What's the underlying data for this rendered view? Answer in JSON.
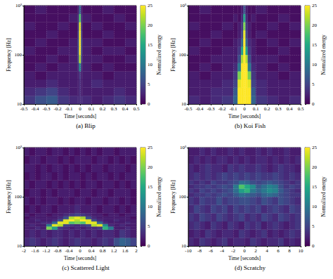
{
  "chart_data": [
    {
      "type": "heatmap",
      "title": "(a) Blip",
      "x_label": "Time [seconds]",
      "y_label": "Frequency [Hz]",
      "xlim": [
        -0.5,
        0.5
      ],
      "xticks": [
        -0.5,
        -0.4,
        -0.3,
        -0.2,
        -0.1,
        0,
        0.1,
        0.2,
        0.3,
        0.4,
        0.5
      ],
      "ylim": [
        10,
        1000
      ],
      "yticks": [
        10,
        100,
        {
          "value": 1000,
          "label": "10³"
        }
      ],
      "log": "y",
      "grid": true,
      "colorbar_label": "Normalized energy",
      "colorbar_range": [
        0,
        25
      ],
      "colorbar_ticks": [
        0,
        5,
        10,
        15,
        20,
        25
      ],
      "x_edges": [
        -0.5,
        -0.4,
        -0.3,
        -0.2,
        -0.1,
        -0.02,
        -0.008,
        0.008,
        0.02,
        0.1,
        0.2,
        0.3,
        0.4,
        0.5
      ],
      "y_edges": [
        10,
        14.7,
        21.5,
        31.6,
        46.4,
        68.1,
        100,
        147,
        215,
        316,
        464,
        681,
        1000
      ],
      "energy": [
        [
          4,
          6,
          7,
          4,
          3,
          3,
          3,
          3,
          3,
          2,
          3,
          4,
          3
        ],
        [
          3,
          4,
          5,
          3,
          2,
          2,
          3,
          2,
          2,
          2,
          2,
          3,
          2
        ],
        [
          2,
          2,
          3,
          2,
          2,
          2,
          3,
          2,
          2,
          3,
          2,
          2,
          2
        ],
        [
          2,
          1,
          2,
          2,
          2,
          2,
          4,
          2,
          2,
          2,
          1,
          2,
          2
        ],
        [
          1,
          2,
          1,
          2,
          2,
          3,
          12,
          3,
          2,
          1,
          2,
          1,
          1
        ],
        [
          1,
          1,
          2,
          1,
          2,
          5,
          22,
          5,
          2,
          2,
          1,
          1,
          2
        ],
        [
          2,
          1,
          1,
          2,
          2,
          6,
          25,
          6,
          2,
          1,
          2,
          2,
          1
        ],
        [
          1,
          2,
          1,
          1,
          2,
          6,
          25,
          6,
          2,
          2,
          1,
          1,
          2
        ],
        [
          1,
          1,
          2,
          1,
          1,
          5,
          25,
          5,
          1,
          1,
          2,
          1,
          1
        ],
        [
          2,
          1,
          1,
          2,
          1,
          4,
          24,
          4,
          1,
          2,
          1,
          1,
          2
        ],
        [
          1,
          1,
          1,
          1,
          2,
          3,
          18,
          3,
          2,
          1,
          1,
          2,
          1
        ],
        [
          1,
          2,
          1,
          1,
          1,
          2,
          8,
          2,
          1,
          1,
          2,
          1,
          1
        ]
      ]
    },
    {
      "type": "heatmap",
      "title": "(b) Koi Fish",
      "x_label": "Time [seconds]",
      "y_label": "Frequency [Hz]",
      "xlim": [
        -0.5,
        0.5
      ],
      "xticks": [
        -0.5,
        -0.4,
        -0.3,
        -0.2,
        -0.1,
        0,
        0.1,
        0.2,
        0.3,
        0.4,
        0.5
      ],
      "ylim": [
        10,
        1000
      ],
      "yticks": [
        10,
        100,
        {
          "value": 1000,
          "label": "10³"
        }
      ],
      "log": "y",
      "grid": true,
      "colorbar_label": "Normalized energy",
      "colorbar_range": [
        0,
        25
      ],
      "colorbar_ticks": [
        0,
        5,
        10,
        15,
        20,
        25
      ],
      "x_edges": [
        -0.5,
        -0.4,
        -0.3,
        -0.2,
        -0.1,
        -0.06,
        -0.03,
        -0.01,
        0.01,
        0.03,
        0.06,
        0.1,
        0.2,
        0.3,
        0.4,
        0.5
      ],
      "y_edges": [
        10,
        14.7,
        21.5,
        31.6,
        46.4,
        68.1,
        100,
        147,
        215,
        316,
        464,
        681,
        1000
      ],
      "energy": [
        [
          3,
          2,
          3,
          4,
          8,
          25,
          25,
          25,
          25,
          25,
          8,
          4,
          3,
          2,
          3
        ],
        [
          2,
          2,
          3,
          3,
          7,
          25,
          25,
          25,
          25,
          25,
          7,
          3,
          2,
          2,
          2
        ],
        [
          2,
          2,
          2,
          3,
          5,
          24,
          25,
          25,
          25,
          24,
          5,
          3,
          2,
          2,
          2
        ],
        [
          2,
          1,
          2,
          2,
          4,
          20,
          25,
          25,
          25,
          20,
          4,
          2,
          2,
          1,
          2
        ],
        [
          1,
          2,
          1,
          2,
          3,
          10,
          25,
          25,
          25,
          10,
          3,
          2,
          1,
          2,
          1
        ],
        [
          1,
          1,
          2,
          2,
          2,
          6,
          22,
          25,
          22,
          6,
          2,
          2,
          2,
          1,
          1
        ],
        [
          2,
          1,
          1,
          2,
          2,
          4,
          14,
          25,
          14,
          4,
          2,
          1,
          1,
          2,
          1
        ],
        [
          1,
          2,
          1,
          1,
          2,
          3,
          8,
          25,
          8,
          3,
          2,
          1,
          2,
          1,
          2
        ],
        [
          1,
          1,
          2,
          1,
          1,
          2,
          5,
          24,
          5,
          2,
          1,
          2,
          1,
          1,
          1
        ],
        [
          2,
          1,
          1,
          2,
          1,
          2,
          4,
          20,
          4,
          2,
          1,
          1,
          2,
          1,
          2
        ],
        [
          1,
          1,
          1,
          1,
          2,
          1,
          3,
          14,
          3,
          1,
          2,
          1,
          1,
          2,
          1
        ],
        [
          1,
          2,
          1,
          1,
          1,
          1,
          2,
          6,
          2,
          1,
          1,
          2,
          1,
          1,
          1
        ]
      ]
    },
    {
      "type": "heatmap",
      "title": "(c) Scattered Light",
      "x_label": "Time [seconds]",
      "y_label": "Frequency [Hz]",
      "xlim": [
        -2,
        2
      ],
      "xticks": [
        -2,
        -1.6,
        -1.2,
        -0.8,
        -0.4,
        0,
        0.4,
        0.8,
        1.2,
        1.6,
        2
      ],
      "ylim": [
        10,
        1000
      ],
      "yticks": [
        10,
        100,
        {
          "value": 1000,
          "label": "10³"
        }
      ],
      "log": "y",
      "grid": true,
      "colorbar_label": "Normalized energy",
      "colorbar_range": [
        0,
        25
      ],
      "colorbar_ticks": [
        0,
        5,
        10,
        15,
        20,
        25
      ],
      "x_edges": [
        -2,
        -1.8,
        -1.6,
        -1.4,
        -1.2,
        -1,
        -0.8,
        -0.6,
        -0.4,
        -0.2,
        0,
        0.2,
        0.4,
        0.6,
        0.8,
        1,
        1.2,
        1.4,
        1.6,
        1.8,
        2
      ],
      "y_edges": [
        10,
        14.7,
        21.5,
        25,
        28,
        31.6,
        35,
        40,
        46.4,
        68.1,
        100,
        147,
        215,
        316,
        464,
        681,
        1000
      ],
      "energy": [
        [
          3,
          4,
          3,
          2,
          3,
          4,
          3,
          2,
          3,
          4,
          3,
          3,
          2,
          3,
          4,
          3,
          6,
          8,
          7,
          5
        ],
        [
          2,
          3,
          2,
          3,
          2,
          3,
          3,
          2,
          3,
          2,
          3,
          2,
          3,
          2,
          3,
          3,
          2,
          4,
          3,
          2
        ],
        [
          2,
          2,
          3,
          2,
          20,
          14,
          4,
          3,
          2,
          3,
          2,
          3,
          3,
          4,
          16,
          10,
          2,
          2,
          3,
          2
        ],
        [
          2,
          3,
          2,
          2,
          10,
          24,
          22,
          5,
          4,
          3,
          4,
          5,
          22,
          24,
          12,
          3,
          2,
          3,
          2,
          2
        ],
        [
          2,
          2,
          2,
          3,
          3,
          8,
          24,
          24,
          18,
          20,
          18,
          24,
          24,
          8,
          3,
          2,
          2,
          2,
          3,
          2
        ],
        [
          2,
          2,
          3,
          2,
          2,
          3,
          6,
          24,
          25,
          22,
          25,
          24,
          6,
          3,
          2,
          2,
          3,
          2,
          2,
          2
        ],
        [
          1,
          2,
          2,
          2,
          2,
          2,
          3,
          6,
          22,
          24,
          22,
          6,
          3,
          2,
          2,
          2,
          2,
          2,
          2,
          1
        ],
        [
          2,
          1,
          2,
          2,
          1,
          2,
          2,
          3,
          4,
          5,
          4,
          3,
          2,
          2,
          1,
          2,
          2,
          1,
          2,
          2
        ],
        [
          1,
          2,
          1,
          2,
          2,
          1,
          2,
          2,
          2,
          3,
          2,
          2,
          2,
          1,
          2,
          2,
          1,
          2,
          1,
          2
        ],
        [
          2,
          1,
          2,
          1,
          2,
          2,
          1,
          2,
          1,
          2,
          2,
          1,
          2,
          2,
          1,
          2,
          2,
          1,
          2,
          1
        ],
        [
          1,
          2,
          2,
          1,
          2,
          1,
          2,
          2,
          2,
          1,
          2,
          2,
          1,
          2,
          2,
          1,
          2,
          2,
          2,
          1
        ],
        [
          2,
          1,
          2,
          2,
          1,
          2,
          1,
          2,
          1,
          2,
          1,
          2,
          2,
          1,
          2,
          2,
          1,
          2,
          1,
          2
        ],
        [
          1,
          2,
          1,
          2,
          2,
          1,
          2,
          1,
          2,
          2,
          1,
          2,
          1,
          2,
          2,
          1,
          2,
          1,
          2,
          2
        ],
        [
          2,
          2,
          1,
          2,
          1,
          2,
          2,
          1,
          2,
          1,
          2,
          1,
          2,
          2,
          1,
          2,
          2,
          2,
          1,
          2
        ],
        [
          1,
          2,
          2,
          1,
          2,
          2,
          1,
          2,
          1,
          2,
          2,
          2,
          1,
          2,
          2,
          1,
          2,
          1,
          2,
          1
        ],
        [
          2,
          1,
          2,
          2,
          1,
          2,
          2,
          1,
          2,
          1,
          2,
          1,
          2,
          1,
          2,
          2,
          1,
          2,
          2,
          2
        ]
      ]
    },
    {
      "type": "heatmap",
      "title": "(d) Scratchy",
      "x_label": "Time [seconds]",
      "y_label": "Frequency [Hz]",
      "xlim": [
        -10,
        10
      ],
      "xticks": [
        -10,
        -8,
        -6,
        -4,
        -2,
        0,
        2,
        4,
        6,
        8,
        10
      ],
      "ylim": [
        10,
        1000
      ],
      "yticks": [
        10,
        100,
        {
          "value": 1000,
          "label": "10³"
        }
      ],
      "log": "y",
      "grid": true,
      "colorbar_label": "Normalized energy",
      "colorbar_range": [
        0,
        25
      ],
      "colorbar_ticks": [
        0,
        5,
        10,
        15,
        20,
        25
      ],
      "x_edges": [
        -10,
        -9,
        -8,
        -7,
        -6,
        -5,
        -4,
        -3,
        -2,
        -1,
        0,
        1,
        2,
        3,
        4,
        5,
        6,
        7,
        8,
        9,
        10
      ],
      "y_edges": [
        10,
        14.7,
        21.5,
        31.6,
        46.4,
        68.1,
        100,
        121,
        147,
        178,
        215,
        316,
        464,
        681,
        1000
      ],
      "energy": [
        [
          3,
          2,
          4,
          3,
          2,
          3,
          4,
          2,
          3,
          3,
          2,
          4,
          3,
          2,
          3,
          3,
          4,
          2,
          3,
          2
        ],
        [
          2,
          3,
          2,
          4,
          3,
          2,
          3,
          3,
          2,
          4,
          3,
          2,
          3,
          4,
          2,
          3,
          2,
          3,
          4,
          3
        ],
        [
          3,
          4,
          3,
          2,
          4,
          3,
          2,
          4,
          3,
          2,
          4,
          3,
          4,
          2,
          3,
          4,
          3,
          2,
          3,
          4
        ],
        [
          4,
          3,
          5,
          4,
          3,
          5,
          4,
          3,
          4,
          5,
          3,
          4,
          3,
          5,
          4,
          3,
          5,
          4,
          3,
          4
        ],
        [
          3,
          5,
          4,
          3,
          5,
          4,
          5,
          3,
          5,
          4,
          5,
          4,
          5,
          3,
          4,
          5,
          4,
          3,
          5,
          4
        ],
        [
          4,
          3,
          5,
          4,
          4,
          6,
          4,
          5,
          5,
          6,
          6,
          5,
          4,
          6,
          5,
          4,
          6,
          5,
          4,
          3
        ],
        [
          3,
          4,
          4,
          5,
          4,
          5,
          6,
          5,
          7,
          9,
          8,
          7,
          6,
          8,
          9,
          8,
          6,
          5,
          4,
          4
        ],
        [
          4,
          3,
          5,
          4,
          5,
          4,
          5,
          6,
          9,
          14,
          16,
          10,
          8,
          10,
          12,
          11,
          7,
          5,
          4,
          3
        ],
        [
          3,
          4,
          4,
          5,
          4,
          5,
          6,
          5,
          10,
          18,
          15,
          12,
          7,
          9,
          11,
          10,
          6,
          4,
          5,
          4
        ],
        [
          4,
          3,
          4,
          3,
          5,
          4,
          4,
          5,
          6,
          9,
          8,
          6,
          5,
          6,
          7,
          6,
          5,
          4,
          3,
          4
        ],
        [
          3,
          4,
          3,
          4,
          3,
          4,
          5,
          4,
          5,
          4,
          5,
          4,
          5,
          4,
          4,
          5,
          4,
          3,
          4,
          3
        ],
        [
          3,
          2,
          3,
          4,
          3,
          3,
          2,
          4,
          3,
          4,
          3,
          3,
          4,
          3,
          2,
          3,
          4,
          3,
          3,
          2
        ],
        [
          2,
          3,
          2,
          3,
          2,
          3,
          3,
          2,
          3,
          2,
          3,
          2,
          3,
          3,
          2,
          3,
          2,
          3,
          2,
          3
        ],
        [
          2,
          2,
          3,
          2,
          3,
          2,
          2,
          3,
          2,
          3,
          2,
          2,
          3,
          2,
          3,
          2,
          2,
          3,
          2,
          2
        ]
      ]
    }
  ]
}
